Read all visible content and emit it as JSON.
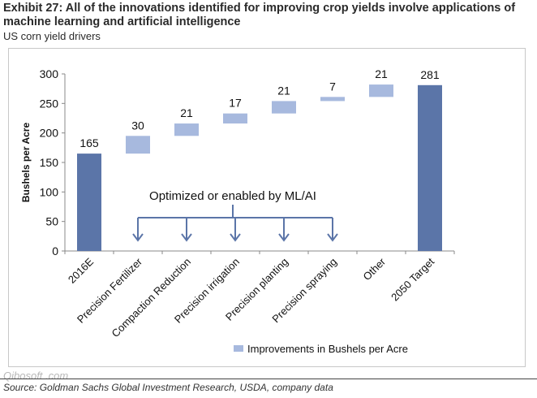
{
  "header": {
    "title": "Exhibit 27: All of the innovations identified for improving crop yields involve applications of machine learning and artificial intelligence",
    "subtitle": "US corn yield drivers"
  },
  "footer": {
    "source": "Source: Goldman Sachs Global Investment Research, USDA, company data",
    "watermark": "Qibosoft .com"
  },
  "chart_data": {
    "type": "bar",
    "subtype": "waterfall",
    "ylabel": "Bushels per Acre",
    "ylim": [
      0,
      300
    ],
    "yticks": [
      0,
      50,
      100,
      150,
      200,
      250,
      300
    ],
    "categories": [
      "2016E",
      "Precision Fertilizer",
      "Compaction Reduction",
      "Precision irrigation",
      "Precision planting",
      "Precision spraying",
      "Other",
      "2050 Target"
    ],
    "bars": [
      {
        "category": "2016E",
        "kind": "total",
        "base": 0,
        "value": 165,
        "label": "165"
      },
      {
        "category": "Precision Fertilizer",
        "kind": "increment",
        "base": 165,
        "value": 30,
        "label": "30"
      },
      {
        "category": "Compaction Reduction",
        "kind": "increment",
        "base": 195,
        "value": 21,
        "label": "21"
      },
      {
        "category": "Precision irrigation",
        "kind": "increment",
        "base": 216,
        "value": 17,
        "label": "17"
      },
      {
        "category": "Precision planting",
        "kind": "increment",
        "base": 233,
        "value": 21,
        "label": "21"
      },
      {
        "category": "Precision spraying",
        "kind": "increment",
        "base": 254,
        "value": 7,
        "label": "7"
      },
      {
        "category": "Other",
        "kind": "increment",
        "base": 261,
        "value": 21,
        "label": "21"
      },
      {
        "category": "2050 Target",
        "kind": "total",
        "base": 0,
        "value": 281,
        "label": "281"
      }
    ],
    "legend": {
      "label": "Improvements in Bushels per Acre",
      "placement": "bottom-right"
    },
    "annotation": {
      "text": "Optimized or enabled by ML/AI",
      "targets": [
        "Precision Fertilizer",
        "Compaction Reduction",
        "Precision irrigation",
        "Precision planting",
        "Precision spraying"
      ]
    },
    "colors": {
      "total": "#5b75a8",
      "increment": "#a7b9de",
      "axis": "#888888",
      "arrow": "#5b75a8",
      "text": "#111111"
    },
    "grid": false
  }
}
